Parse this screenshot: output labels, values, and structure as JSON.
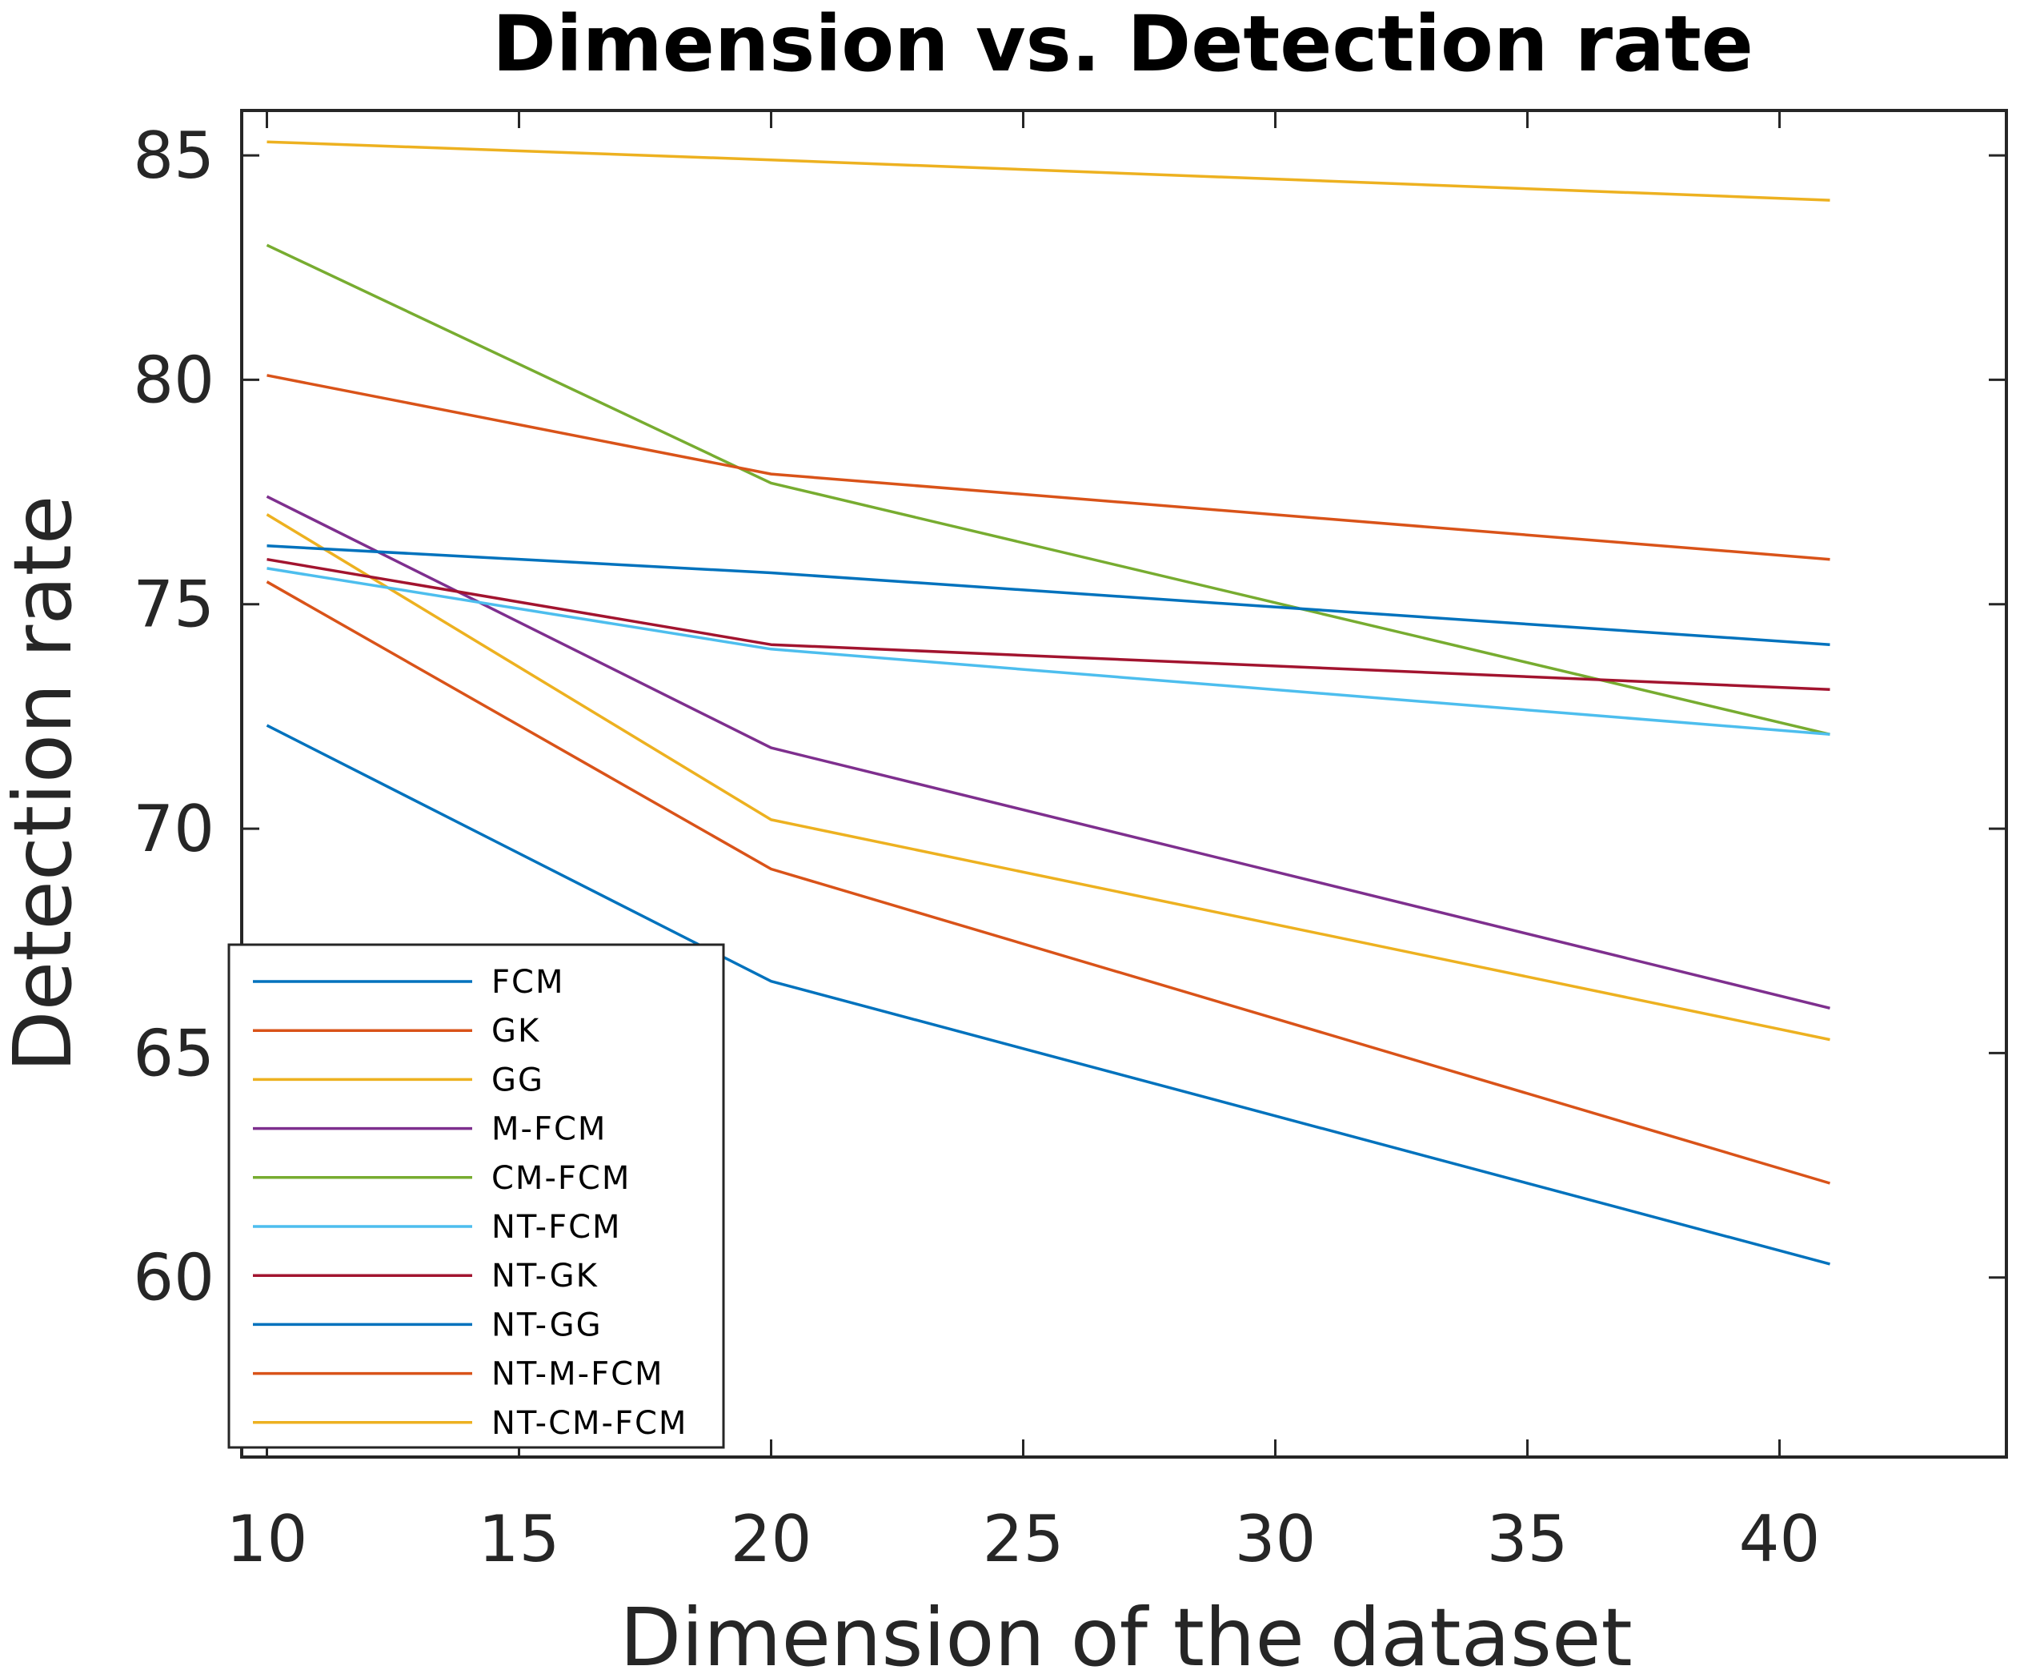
{
  "chart_data": {
    "type": "line",
    "title": "Dimension vs. Detection rate",
    "xlabel": "Dimension of the dataset",
    "ylabel": "Detection rate",
    "xlim": [
      9.5,
      44.5
    ],
    "ylim": [
      56,
      86
    ],
    "xticks": [
      10,
      15,
      20,
      25,
      30,
      35,
      40
    ],
    "yticks": [
      60,
      65,
      70,
      75,
      80,
      85
    ],
    "x": [
      10,
      20,
      41
    ],
    "grid": false,
    "legend_position": "bottom-left",
    "series": [
      {
        "name": "FCM",
        "color": "#0072BD",
        "values": [
          72.3,
          66.6,
          60.3
        ]
      },
      {
        "name": "GK",
        "color": "#D95319",
        "values": [
          75.5,
          69.1,
          62.1
        ]
      },
      {
        "name": "GG",
        "color": "#EDB120",
        "values": [
          77.0,
          70.2,
          65.3
        ]
      },
      {
        "name": "M-FCM",
        "color": "#7E2F8E",
        "values": [
          77.4,
          71.8,
          66.0
        ]
      },
      {
        "name": "CM-FCM",
        "color": "#77AC30",
        "values": [
          83.0,
          77.7,
          72.1
        ]
      },
      {
        "name": "NT-FCM",
        "color": "#4DBEEE",
        "values": [
          75.8,
          74.0,
          72.1
        ]
      },
      {
        "name": "NT-GK",
        "color": "#A2142F",
        "values": [
          76.0,
          74.1,
          73.1
        ]
      },
      {
        "name": "NT-GG",
        "color": "#0072BD",
        "values": [
          76.3,
          75.7,
          74.1
        ]
      },
      {
        "name": "NT-M-FCM",
        "color": "#D95319",
        "values": [
          80.1,
          77.9,
          76.0
        ]
      },
      {
        "name": "NT-CM-FCM",
        "color": "#EDB120",
        "values": [
          85.3,
          84.9,
          84.0
        ]
      }
    ]
  }
}
